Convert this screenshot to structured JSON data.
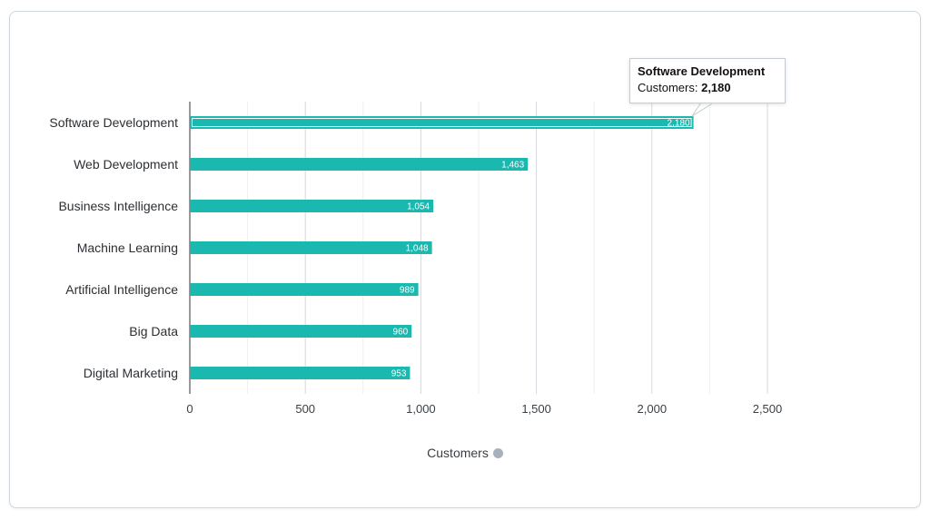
{
  "chart_data": {
    "type": "bar",
    "orientation": "horizontal",
    "categories": [
      "Software Development",
      "Web Development",
      "Business Intelligence",
      "Machine Learning",
      "Artificial Intelligence",
      "Big Data",
      "Digital Marketing"
    ],
    "values": [
      2180,
      1463,
      1054,
      1048,
      989,
      960,
      953
    ],
    "value_labels": [
      "2,180",
      "1,463",
      "1,054",
      "1,048",
      "989",
      "960",
      "953"
    ],
    "xlabel": "Customers",
    "xlim": [
      0,
      2500
    ],
    "ticks": [
      0,
      500,
      1000,
      1500,
      2000,
      2500
    ],
    "tick_labels": [
      "0",
      "500",
      "1,000",
      "1,500",
      "2,000",
      "2,500"
    ],
    "grid": true,
    "bar_color": "#1bb8b0",
    "highlighted_index": 0
  },
  "tooltip": {
    "title": "Software Development",
    "label": "Customers:",
    "value": "2,180"
  }
}
